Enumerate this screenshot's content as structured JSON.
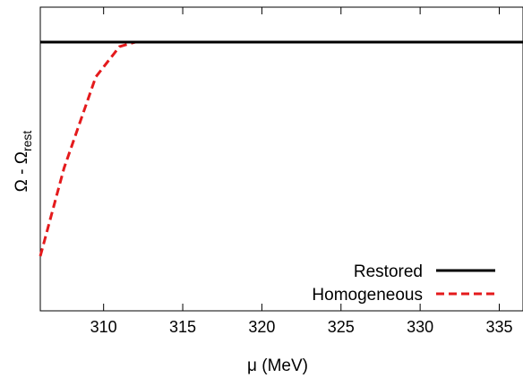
{
  "chart_data": {
    "type": "line",
    "title": "",
    "xlabel": "μ (MeV)",
    "ylabel": {
      "main": "Ω - Ω",
      "subscript": "rest"
    },
    "xlim": [
      306,
      336.5
    ],
    "ylim": [
      0,
      1
    ],
    "y_ticks_shown": false,
    "xticks": [
      310,
      315,
      320,
      325,
      330,
      335
    ],
    "grid": false,
    "legend": "bottom-right",
    "series": [
      {
        "name": "Restored",
        "style": "solid",
        "color": "#000000",
        "x": [
          306,
          336.5
        ],
        "y": [
          0.885,
          0.885
        ]
      },
      {
        "name": "Homogeneous",
        "style": "dashed",
        "color": "#e41a1c",
        "x": [
          306,
          307.5,
          309.5,
          311,
          312,
          336.5
        ],
        "y": [
          0.18,
          0.47,
          0.77,
          0.87,
          0.885,
          0.885
        ]
      }
    ]
  }
}
